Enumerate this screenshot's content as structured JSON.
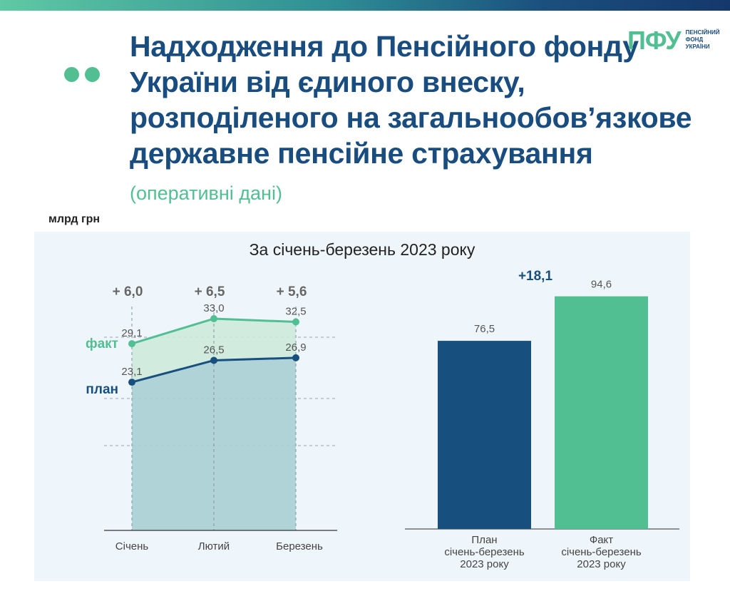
{
  "header": {
    "title": "Надходження до Пенсійного фонду України від єдиного внеску, розподіленого на загальнообов’язкове державне пенсійне страхування",
    "subtitle": "(оперативні дані)",
    "logo_mark": "ПФУ",
    "logo_text": "ПЕНСІЙНИЙ ФОНД УКРАЇНИ"
  },
  "unit_label": "млрд грн",
  "panel_title": "За січень-березень 2023 року",
  "colors": {
    "plan": "#174f7e",
    "fact": "#52bf93",
    "plan_area": "#a9cfd4",
    "fact_area": "#cdeadb",
    "title": "#1a4d7f"
  },
  "chart_data": [
    {
      "type": "area",
      "categories": [
        "Січень",
        "Лютий",
        "Березень"
      ],
      "series": [
        {
          "name": "факт",
          "values": [
            29.1,
            33.0,
            32.5
          ],
          "labels": [
            "29,1",
            "33,0",
            "32,5"
          ]
        },
        {
          "name": "план",
          "values": [
            23.1,
            26.5,
            26.9
          ],
          "labels": [
            "23,1",
            "26,5",
            "26,9"
          ]
        }
      ],
      "differences": [
        "+ 6,0",
        "+ 6,5",
        "+ 5,6"
      ],
      "ylim": [
        0,
        36
      ],
      "grid": "dashed"
    },
    {
      "type": "bar",
      "categories": [
        "План січень-березень 2023 року",
        "Факт січень-березень 2023 року"
      ],
      "category_lines": [
        [
          "План",
          "січень-березень",
          "2023 року"
        ],
        [
          "Факт",
          "січень-березень",
          "2023 року"
        ]
      ],
      "values": [
        76.5,
        94.6
      ],
      "labels": [
        "76,5",
        "94,6"
      ],
      "difference": "+18,1",
      "ylim": [
        0,
        100
      ]
    }
  ]
}
